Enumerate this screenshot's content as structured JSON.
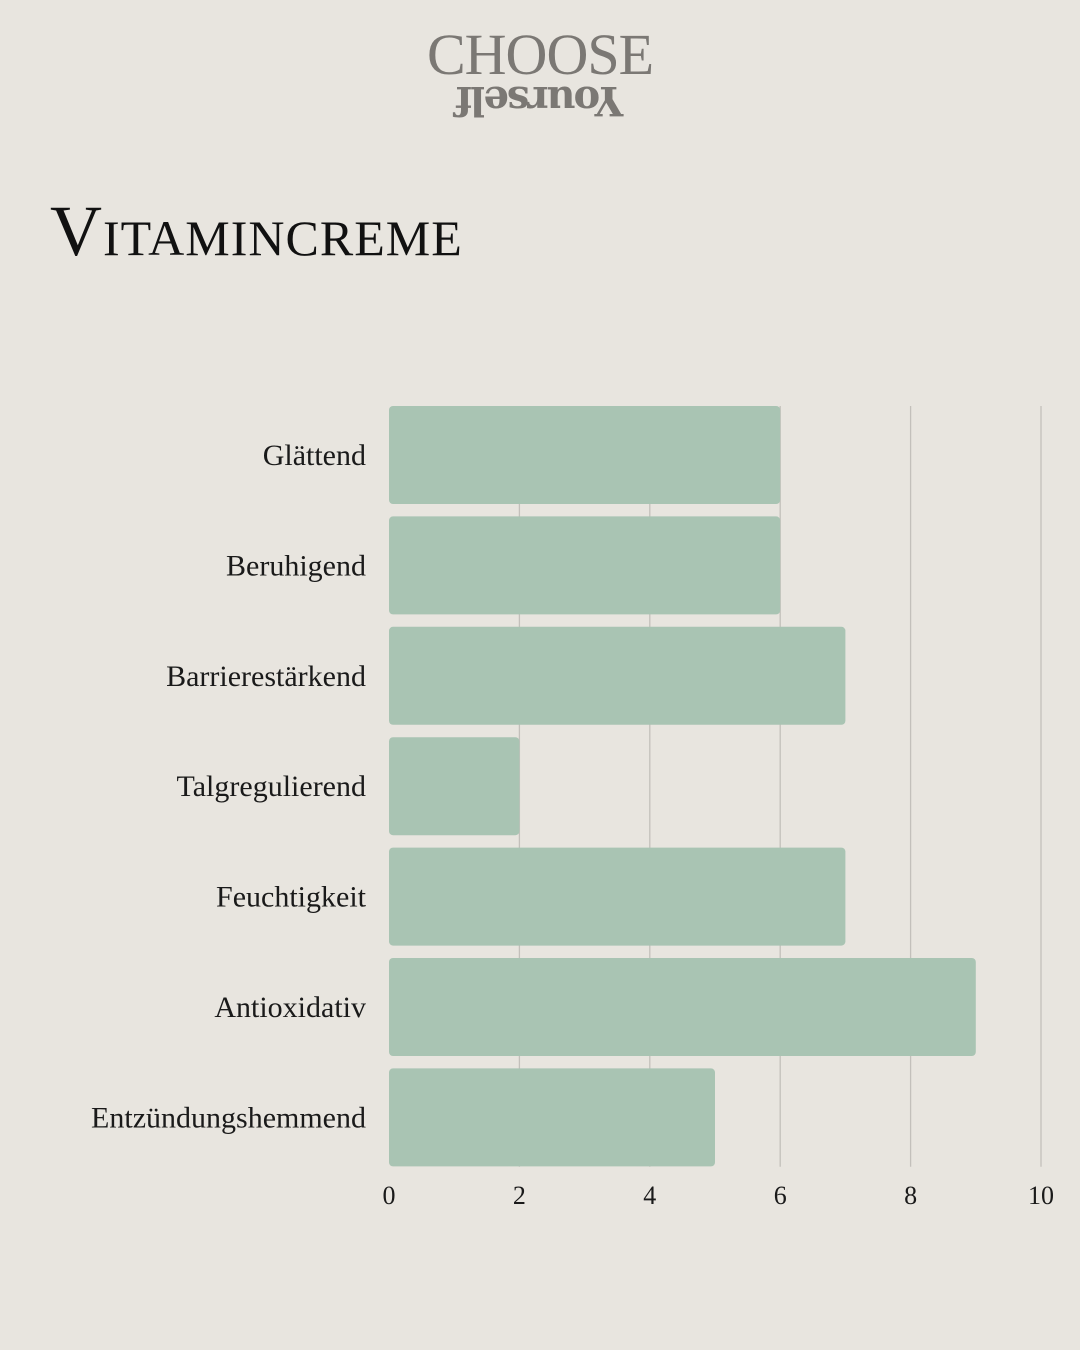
{
  "logo": {
    "line1": "CHOOSE",
    "line2": "Yourself"
  },
  "title": "Vitamincreme",
  "colors": {
    "bar": "#a9c4b3",
    "grid": "#c3c0bb",
    "background": "#e8e5df"
  },
  "chart_data": {
    "type": "bar",
    "orientation": "horizontal",
    "title": "Vitamincreme",
    "categories": [
      "Glättend",
      "Beruhigend",
      "Barrierestärkend",
      "Talgregulierend",
      "Feuchtigkeit",
      "Antioxidativ",
      "Entzündungshemmend"
    ],
    "values": [
      6,
      6,
      7,
      2,
      7,
      9,
      5
    ],
    "xlim": [
      0,
      10
    ],
    "xticks": [
      "0",
      "2",
      "4",
      "6",
      "8",
      "10"
    ],
    "xlabel": "",
    "ylabel": "",
    "grid": true
  }
}
